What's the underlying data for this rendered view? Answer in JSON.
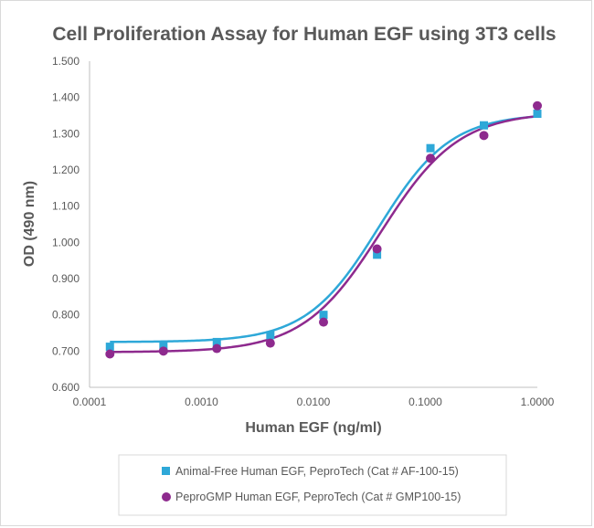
{
  "chart_data": {
    "type": "scatter",
    "title": "Cell Proliferation Assay for Human EGF using 3T3 cells",
    "xlabel": "Human EGF (ng/ml)",
    "ylabel": "OD (490 nm)",
    "x_scale": "log",
    "xlim": [
      0.0001,
      1.0
    ],
    "ylim": [
      0.6,
      1.5
    ],
    "x_ticks": [
      0.0001,
      0.001,
      0.01,
      0.1,
      1.0
    ],
    "x_tick_labels": [
      "0.0001",
      "0.0010",
      "0.0100",
      "0.1000",
      "1.0000"
    ],
    "y_ticks": [
      0.6,
      0.7,
      0.8,
      0.9,
      1.0,
      1.1,
      1.2,
      1.3,
      1.4,
      1.5
    ],
    "y_tick_labels": [
      "0.600",
      "0.700",
      "0.800",
      "0.900",
      "1.000",
      "1.100",
      "1.200",
      "1.300",
      "1.400",
      "1.500"
    ],
    "grid": false,
    "legend_position": "bottom",
    "series": [
      {
        "name": "Animal-Free Human EGF, PeproTech (Cat # AF-100-15)",
        "color": "#2ea8d8",
        "marker": "square",
        "x": [
          0.000152,
          0.000457,
          0.00137,
          0.00412,
          0.0123,
          0.037,
          0.111,
          0.333,
          1.0
        ],
        "y": [
          0.712,
          0.716,
          0.725,
          0.744,
          0.8,
          0.966,
          1.26,
          1.323,
          1.355
        ],
        "fit": {
          "bottom": 0.725,
          "top": 1.355,
          "ec50": 0.038,
          "hill": 1.35
        }
      },
      {
        "name": "PeproGMP Human EGF, PeproTech (Cat # GMP100-15)",
        "color": "#8e2a8e",
        "marker": "circle",
        "x": [
          0.000152,
          0.000457,
          0.00137,
          0.00412,
          0.0123,
          0.037,
          0.111,
          0.333,
          1.0
        ],
        "y": [
          0.692,
          0.7,
          0.707,
          0.722,
          0.78,
          0.982,
          1.232,
          1.295,
          1.377
        ],
        "fit": {
          "bottom": 0.697,
          "top": 1.36,
          "ec50": 0.04,
          "hill": 1.25
        }
      }
    ]
  }
}
